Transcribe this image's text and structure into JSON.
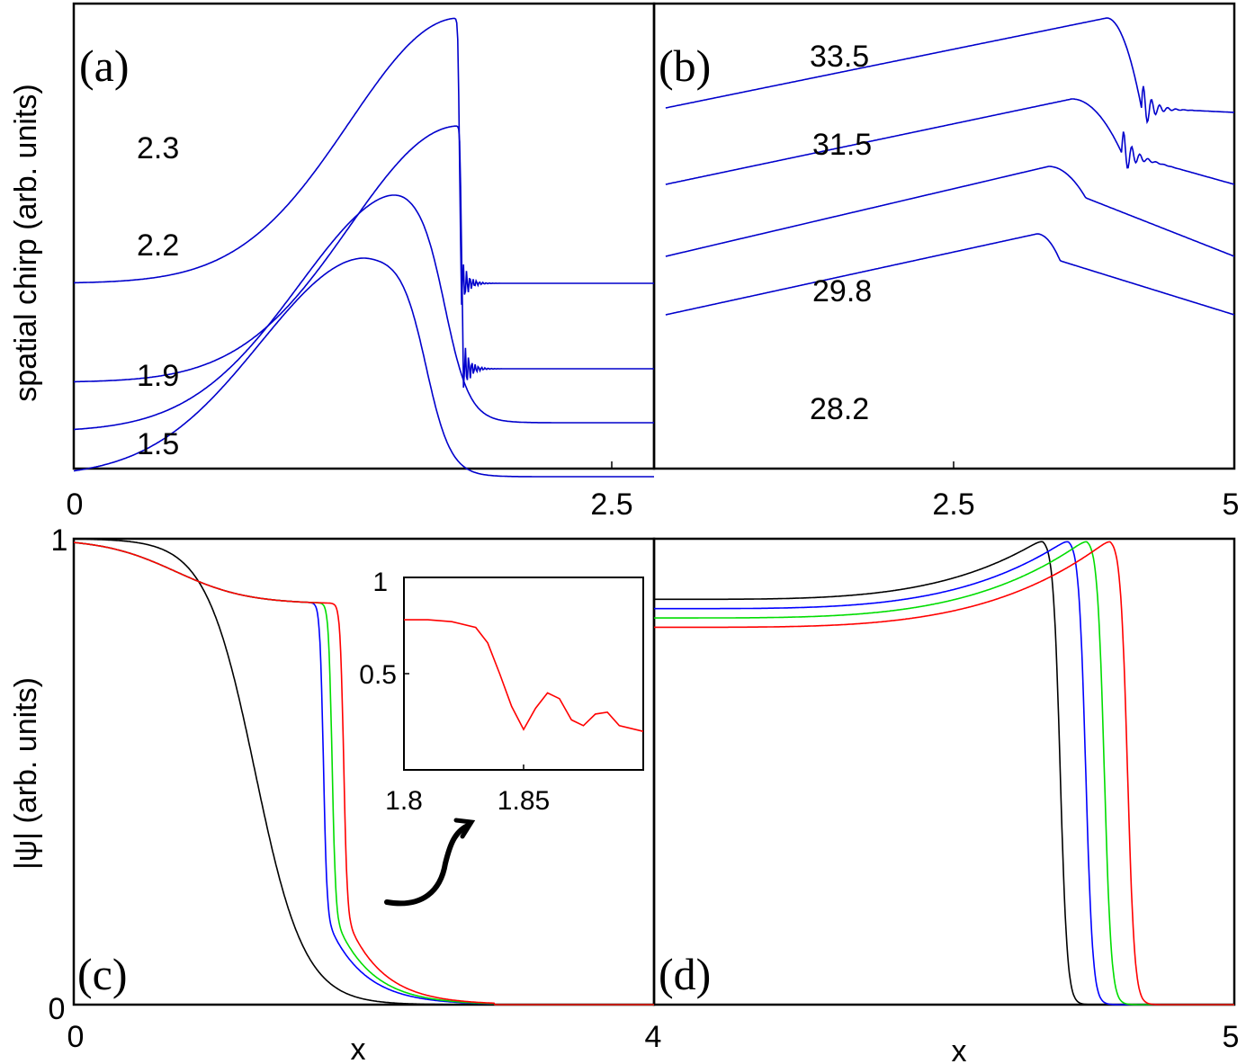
{
  "chart_data": [
    {
      "id": "a",
      "type": "line",
      "panel_label": "(a)",
      "ylabel": "spatial chirp (arb. units)",
      "xlim": [
        0,
        2.8
      ],
      "x_ticks": [
        "0",
        "2.5"
      ],
      "series": [
        {
          "label": "2.3",
          "color": "#0000cc",
          "front_x": 1.86,
          "front_x_shoulder": 1.86,
          "base_left": 3.7,
          "peak": 9.6,
          "base_right": 3.7,
          "oscillations": true
        },
        {
          "label": "2.2",
          "color": "#0000cc",
          "front_x": 1.87,
          "front_x_shoulder": 1.86,
          "base_left": 1.5,
          "peak": 7.2,
          "base_right": 1.8,
          "oscillations": true
        },
        {
          "label": "1.9",
          "color": "#0000cc",
          "front_x": 1.79,
          "front_x_shoulder": 1.62,
          "base_left": 0.4,
          "peak": 5.8,
          "base_right": 0.6,
          "oscillations": false
        },
        {
          "label": "1.5",
          "color": "#0000cc",
          "front_x": 1.7,
          "front_x_shoulder": 1.43,
          "base_left": -0.6,
          "peak": 4.3,
          "base_right": -0.6,
          "oscillations": false
        }
      ]
    },
    {
      "id": "b",
      "type": "line",
      "panel_label": "(b)",
      "xlim": [
        0,
        5
      ],
      "x_ticks": [
        "2.5",
        "5"
      ],
      "series": [
        {
          "label": "33.5",
          "color": "#0000cc",
          "start": 7.6,
          "peak": 9.6,
          "peak_x": 3.9,
          "front_x": 4.2,
          "drop": 7.6,
          "end": 7.5,
          "oscillations": true
        },
        {
          "label": "31.5",
          "color": "#0000cc",
          "start": 5.9,
          "peak": 7.8,
          "peak_x": 3.6,
          "front_x": 4.03,
          "drop": 6.6,
          "end": 5.9,
          "oscillations": true
        },
        {
          "label": "29.8",
          "color": "#0000cc",
          "start": 4.3,
          "peak": 6.3,
          "peak_x": 3.4,
          "front_x": 3.72,
          "drop": 5.6,
          "end": 4.3,
          "oscillations": false
        },
        {
          "label": "28.2",
          "color": "#0000cc",
          "start": 3.0,
          "peak": 4.8,
          "peak_x": 3.3,
          "front_x": 3.5,
          "drop": 4.2,
          "end": 3.0,
          "oscillations": false
        }
      ]
    },
    {
      "id": "c",
      "type": "line",
      "panel_label": "(c)",
      "xlabel": "x",
      "ylabel": "|ψ| (arb. units)",
      "xlim": [
        0,
        4
      ],
      "ylim": [
        0,
        1
      ],
      "x_ticks": [
        "0",
        "4"
      ],
      "y_ticks": [
        "0",
        "1"
      ],
      "series": [
        {
          "color": "#000000",
          "front_x": 1.25,
          "shoulder": 0.9,
          "step": false
        },
        {
          "color": "#0000ff",
          "front_x": 1.72,
          "shoulder": 0.86,
          "step": true
        },
        {
          "color": "#00dd00",
          "front_x": 1.78,
          "shoulder": 0.86,
          "step": true
        },
        {
          "color": "#ff0000",
          "front_x": 1.86,
          "shoulder": 0.86,
          "step": true
        }
      ],
      "inset": {
        "xlim": [
          1.8,
          1.9
        ],
        "ylim": [
          0,
          1
        ],
        "x_ticks": [
          "1.8",
          "1.85"
        ],
        "y_ticks": [
          "0.5",
          "1"
        ],
        "series": {
          "color": "#ff0000",
          "x": [
            1.8,
            1.81,
            1.82,
            1.83,
            1.835,
            1.84,
            1.845,
            1.85,
            1.855,
            1.86,
            1.865,
            1.87,
            1.875,
            1.88,
            1.885,
            1.89,
            1.9
          ],
          "y": [
            0.78,
            0.78,
            0.77,
            0.74,
            0.66,
            0.5,
            0.33,
            0.21,
            0.32,
            0.4,
            0.37,
            0.26,
            0.23,
            0.29,
            0.3,
            0.23,
            0.2
          ]
        }
      }
    },
    {
      "id": "d",
      "type": "line",
      "panel_label": "(d)",
      "xlabel": "x",
      "xlim": [
        0,
        5
      ],
      "ylim": [
        0,
        1
      ],
      "x_ticks": [
        "5"
      ],
      "series": [
        {
          "color": "#000000",
          "start": 0.87,
          "front_x": 3.5
        },
        {
          "color": "#0000ff",
          "start": 0.85,
          "front_x": 3.72
        },
        {
          "color": "#00dd00",
          "start": 0.83,
          "front_x": 3.88
        },
        {
          "color": "#ff0000",
          "start": 0.81,
          "front_x": 4.08
        }
      ]
    }
  ]
}
